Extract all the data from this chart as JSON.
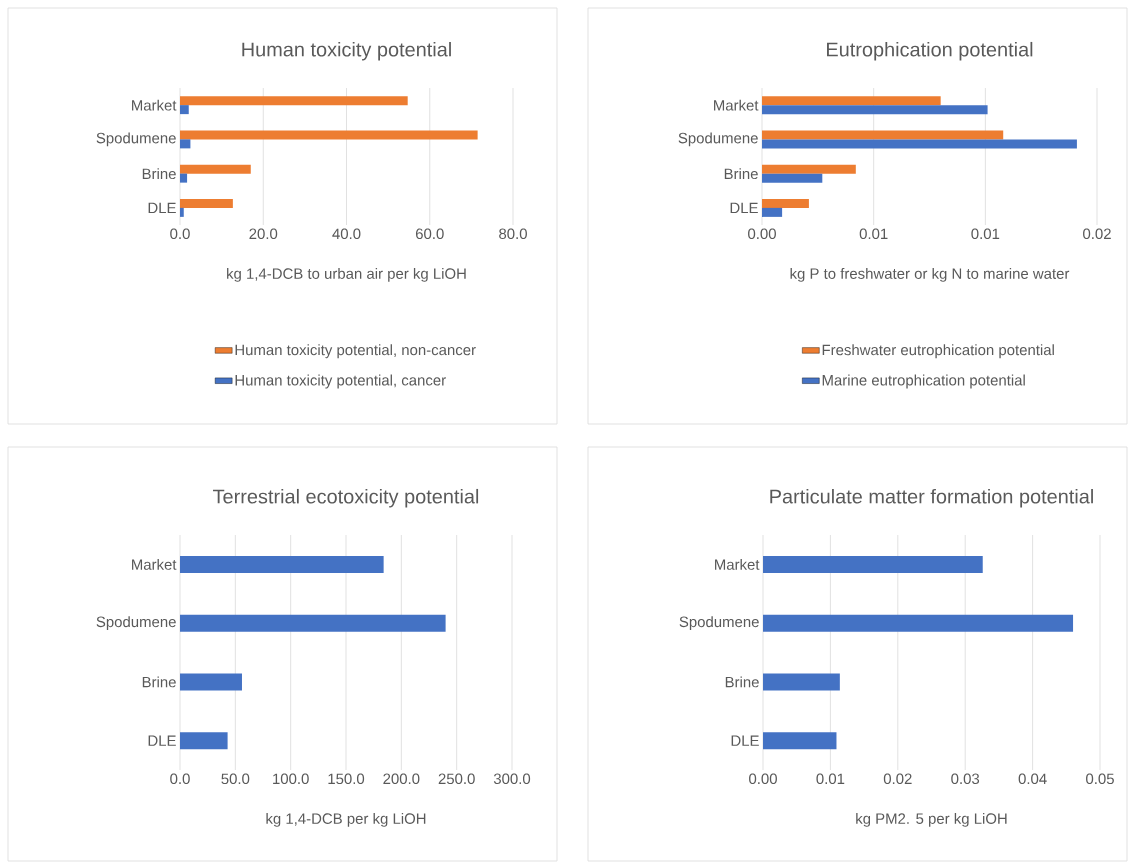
{
  "chart_data": [
    {
      "type": "bar",
      "orientation": "horizontal",
      "title": "Human toxicity potential",
      "xlabel": "kg 1,4-DCB to urban air per kg LiOH",
      "categories": [
        "Market",
        "Spodumene",
        "Brine",
        "DLE"
      ],
      "series": [
        {
          "name": "Human toxicity potential, non-cancer",
          "color": "#ed7d31",
          "values": [
            54.7,
            71.5,
            17.0,
            12.7
          ]
        },
        {
          "name": "Human toxicity potential, cancer",
          "color": "#4472c4",
          "values": [
            2.1,
            2.5,
            1.7,
            0.9
          ]
        }
      ],
      "xlim": [
        0,
        80
      ],
      "xticks": [
        {
          "value": 0,
          "label": "0.0"
        },
        {
          "value": 20,
          "label": "20.0"
        },
        {
          "value": 40,
          "label": "40.0"
        },
        {
          "value": 60,
          "label": "60.0"
        },
        {
          "value": 80,
          "label": "80.0"
        }
      ],
      "grid": "x",
      "legend": "bottom"
    },
    {
      "type": "bar",
      "orientation": "horizontal",
      "title": "Eutrophication potential",
      "xlabel": "kg P to freshwater or kg N to marine water",
      "categories": [
        "Market",
        "Spodumene",
        "Brine",
        "DLE"
      ],
      "series": [
        {
          "name": "Freshwater eutrophication potential",
          "color": "#ed7d31",
          "values": [
            0.008,
            0.0108,
            0.0042,
            0.0021
          ]
        },
        {
          "name": "Marine eutrophication potential",
          "color": "#4472c4",
          "values": [
            0.0101,
            0.0141,
            0.0027,
            0.0009
          ]
        }
      ],
      "xlim": [
        0,
        0.015
      ],
      "xticks": [
        {
          "value": 0,
          "label": "0.00"
        },
        {
          "value": 0.005,
          "label": "0.01"
        },
        {
          "value": 0.01,
          "label": "0.01"
        },
        {
          "value": 0.015,
          "label": "0.02"
        }
      ],
      "grid": "x",
      "legend": "bottom"
    },
    {
      "type": "bar",
      "orientation": "horizontal",
      "title": "Terrestrial ecotoxicity potential",
      "xlabel": "kg 1,4-DCB per kg LiOH",
      "categories": [
        "Market",
        "Spodumene",
        "Brine",
        "DLE"
      ],
      "series": [
        {
          "color": "#4472c4",
          "values": [
            184,
            240,
            56,
            43
          ]
        }
      ],
      "xlim": [
        0,
        300
      ],
      "xticks": [
        {
          "value": 0,
          "label": "0.0"
        },
        {
          "value": 50,
          "label": "50.0"
        },
        {
          "value": 100,
          "label": "100.0"
        },
        {
          "value": 150,
          "label": "150.0"
        },
        {
          "value": 200,
          "label": "200.0"
        },
        {
          "value": 250,
          "label": "250.0"
        },
        {
          "value": 300,
          "label": "300.0"
        }
      ],
      "grid": "x"
    },
    {
      "type": "bar",
      "orientation": "horizontal",
      "title": "Particulate matter formation potential",
      "xlabel": "kg PM2. 5 per kg LiOH",
      "categories": [
        "Market",
        "Spodumene",
        "Brine",
        "DLE"
      ],
      "series": [
        {
          "color": "#4472c4",
          "values": [
            0.0326,
            0.046,
            0.0114,
            0.0109
          ]
        }
      ],
      "xlim": [
        0,
        0.05
      ],
      "xticks": [
        {
          "value": 0,
          "label": "0.00"
        },
        {
          "value": 0.01,
          "label": "0.01"
        },
        {
          "value": 0.02,
          "label": "0.02"
        },
        {
          "value": 0.03,
          "label": "0.03"
        },
        {
          "value": 0.04,
          "label": "0.04"
        },
        {
          "value": 0.05,
          "label": "0.05"
        }
      ],
      "grid": "x"
    }
  ]
}
